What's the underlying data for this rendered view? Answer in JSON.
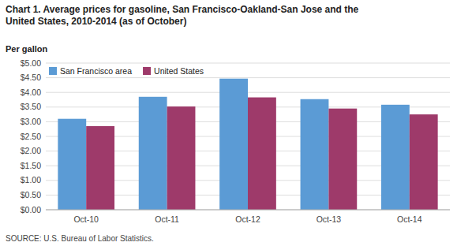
{
  "chart_data": {
    "type": "bar",
    "title": "Chart 1. Average prices for gasoline, San Francisco-Oakland-San Jose  and the\nUnited States, 2010-2014  (as of October)",
    "y_label": "Per gallon",
    "annotations": [
      "SOURCE: U.S. Bureau of Labor Statistics."
    ],
    "categories": [
      "Oct-10",
      "Oct-11",
      "Oct-12",
      "Oct-13",
      "Oct-14"
    ],
    "series": [
      {
        "name": "San Francisco area",
        "color": "#5B9BD5",
        "values": [
          3.1,
          3.85,
          4.47,
          3.77,
          3.58
        ]
      },
      {
        "name": "United States",
        "color": "#9E3A6A",
        "values": [
          2.85,
          3.52,
          3.83,
          3.45,
          3.25
        ]
      }
    ],
    "ylim": [
      0,
      5.0
    ],
    "yticks": [
      {
        "value": 0.0,
        "label": "$0.00"
      },
      {
        "value": 0.5,
        "label": "$0.50"
      },
      {
        "value": 1.0,
        "label": "$1.00"
      },
      {
        "value": 1.5,
        "label": "$1.50"
      },
      {
        "value": 2.0,
        "label": "$2.00"
      },
      {
        "value": 2.5,
        "label": "$2.50"
      },
      {
        "value": 3.0,
        "label": "$3.00"
      },
      {
        "value": 3.5,
        "label": "$3.50"
      },
      {
        "value": 4.0,
        "label": "$4.00"
      },
      {
        "value": 4.5,
        "label": "$4.50"
      },
      {
        "value": 5.0,
        "label": "$5.00"
      }
    ],
    "grid": true,
    "legend": "top-left"
  }
}
